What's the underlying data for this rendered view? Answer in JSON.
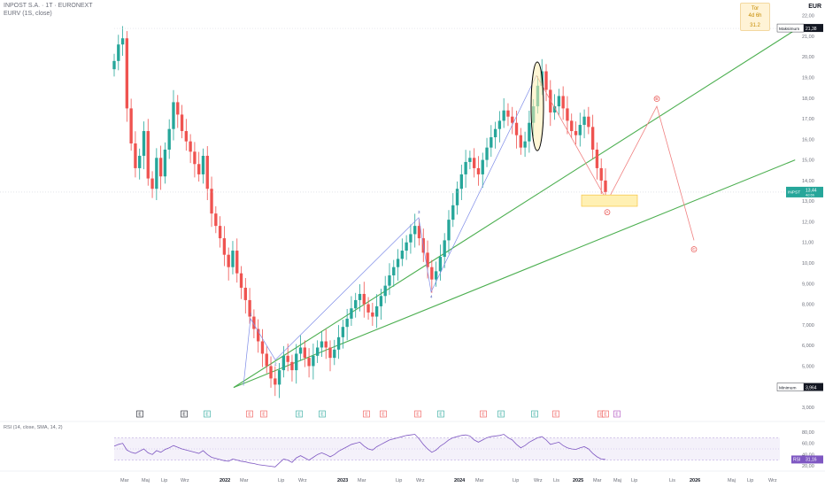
{
  "header": {
    "title": "INPOST S.A. · 1T · EURONEXT",
    "subtitle": "EURV (1S, close)",
    "currency": "EUR"
  },
  "countdown": {
    "line1": "Tor",
    "line2": "4d 6h",
    "line3": "31.2"
  },
  "price_labels": {
    "max_label": "Maksimum",
    "max_value": "21,38",
    "min_label": "Minimum",
    "min_value": "3,964",
    "last_ticker": "INPST",
    "last_value": "13,44",
    "last_sub": "4d 6h"
  },
  "rsi_panel": {
    "label": "RSI (14, close, SMA, 14, 2)",
    "ticker": "RSI",
    "value": "31,16"
  },
  "wave_labels": {
    "w1": "1",
    "w2": "2",
    "w3": "3",
    "w4": "4",
    "wA": "A",
    "wB": "B",
    "wC": "C"
  },
  "event_markers": [
    "E",
    "E",
    "E",
    "E",
    "E",
    "E",
    "E",
    "E",
    "E",
    "E",
    "E",
    "E",
    "E",
    "E",
    "E",
    "E",
    "E",
    "E",
    "E"
  ],
  "colors": {
    "up": "#26a69a",
    "down": "#ef5350",
    "trendline": "#4caf50",
    "wave_blue": "#7e8ce8",
    "wave_red": "#f08080",
    "rsi_line": "#7e57c2",
    "highlight": "#fff0b3"
  },
  "chart_data": {
    "type": "candlestick",
    "ylabel": "",
    "y_ticks": [
      "22,00",
      "21,00",
      "20,00",
      "19,00",
      "18,00",
      "17,00",
      "16,00",
      "15,00",
      "14,00",
      "13,00",
      "12,00",
      "11,00",
      "10,00",
      "9,000",
      "8,000",
      "7,000",
      "6,000",
      "5,000",
      "4,000",
      "3,000"
    ],
    "x_ticks": [
      "Mar",
      "Maj",
      "Lip",
      "Wrz",
      "2022",
      "Mar",
      "Lip",
      "Wrz",
      "2023",
      "Mar",
      "Lip",
      "Wrz",
      "2024",
      "Mar",
      "Lip",
      "Wrz",
      "Lis",
      "2025",
      "Mar",
      "Maj",
      "Lip",
      "Lis",
      "2026",
      "Maj",
      "Lip",
      "Wrz"
    ],
    "rsi_ticks": [
      "80,00",
      "60,00",
      "40,00",
      "20,00"
    ],
    "close_series": [
      19.8,
      20.6,
      20.9,
      17.5,
      15.8,
      14.6,
      15.2,
      16.4,
      14.1,
      13.6,
      15.1,
      14.2,
      15.5,
      16.5,
      17.8,
      17.2,
      16.4,
      15.9,
      15.4,
      14.8,
      14.3,
      15.2,
      13.6,
      12.4,
      11.8,
      11.2,
      10.4,
      9.8,
      10.6,
      9.5,
      8.8,
      8.2,
      7.4,
      6.8,
      6.2,
      5.6,
      5.0,
      4.4,
      4.1,
      4.8,
      5.5,
      5.2,
      4.8,
      5.6,
      5.9,
      5.4,
      5.0,
      5.5,
      5.9,
      6.2,
      5.9,
      5.4,
      5.8,
      6.4,
      6.9,
      7.3,
      7.8,
      8.2,
      8.5,
      8.0,
      7.6,
      7.4,
      7.9,
      8.4,
      8.9,
      9.4,
      9.8,
      10.2,
      10.6,
      11.0,
      11.4,
      11.8,
      11.2,
      10.5,
      9.8,
      9.2,
      9.6,
      10.3,
      11.1,
      12.1,
      12.8,
      13.6,
      14.3,
      14.9,
      15.1,
      14.6,
      14.3,
      15.0,
      15.6,
      16.1,
      16.5,
      16.9,
      17.4,
      17.1,
      16.8,
      16.2,
      15.6,
      15.9,
      16.8,
      17.6,
      18.6,
      19.3,
      18.4,
      17.3,
      17.6,
      18.1,
      17.5,
      16.9,
      16.4,
      16.2,
      16.7,
      17.1,
      16.6,
      15.5,
      14.6,
      14.0,
      13.44
    ],
    "rsi_series": [
      55,
      58,
      60,
      48,
      44,
      42,
      46,
      50,
      43,
      40,
      47,
      44,
      49,
      52,
      56,
      53,
      50,
      48,
      46,
      44,
      42,
      47,
      40,
      35,
      33,
      31,
      29,
      28,
      32,
      30,
      28,
      27,
      25,
      24,
      22,
      21,
      20,
      19,
      18,
      25,
      32,
      30,
      26,
      34,
      38,
      34,
      30,
      35,
      40,
      43,
      40,
      36,
      40,
      46,
      50,
      54,
      58,
      60,
      62,
      55,
      50,
      48,
      54,
      58,
      62,
      66,
      68,
      70,
      72,
      74,
      75,
      76,
      68,
      58,
      50,
      44,
      48,
      55,
      60,
      66,
      70,
      72,
      74,
      75,
      73,
      66,
      62,
      66,
      70,
      72,
      73,
      74,
      76,
      70,
      66,
      58,
      52,
      56,
      62,
      66,
      70,
      72,
      66,
      58,
      60,
      62,
      56,
      52,
      50,
      49,
      52,
      54,
      50,
      42,
      36,
      32,
      31.16
    ],
    "trendlines": [
      {
        "name": "upper",
        "from": [
          2022.2,
          3.96
        ],
        "to": [
          2026.9,
          21.3
        ]
      },
      {
        "name": "lower",
        "from": [
          2022.2,
          3.96
        ],
        "to": [
          2026.9,
          15.0
        ]
      }
    ],
    "projection": {
      "A": 13.0,
      "B": 17.6,
      "C": 11.1
    },
    "ylim": [
      3.0,
      22.5
    ],
    "max": 21.38,
    "min": 3.964,
    "last": 13.44
  }
}
